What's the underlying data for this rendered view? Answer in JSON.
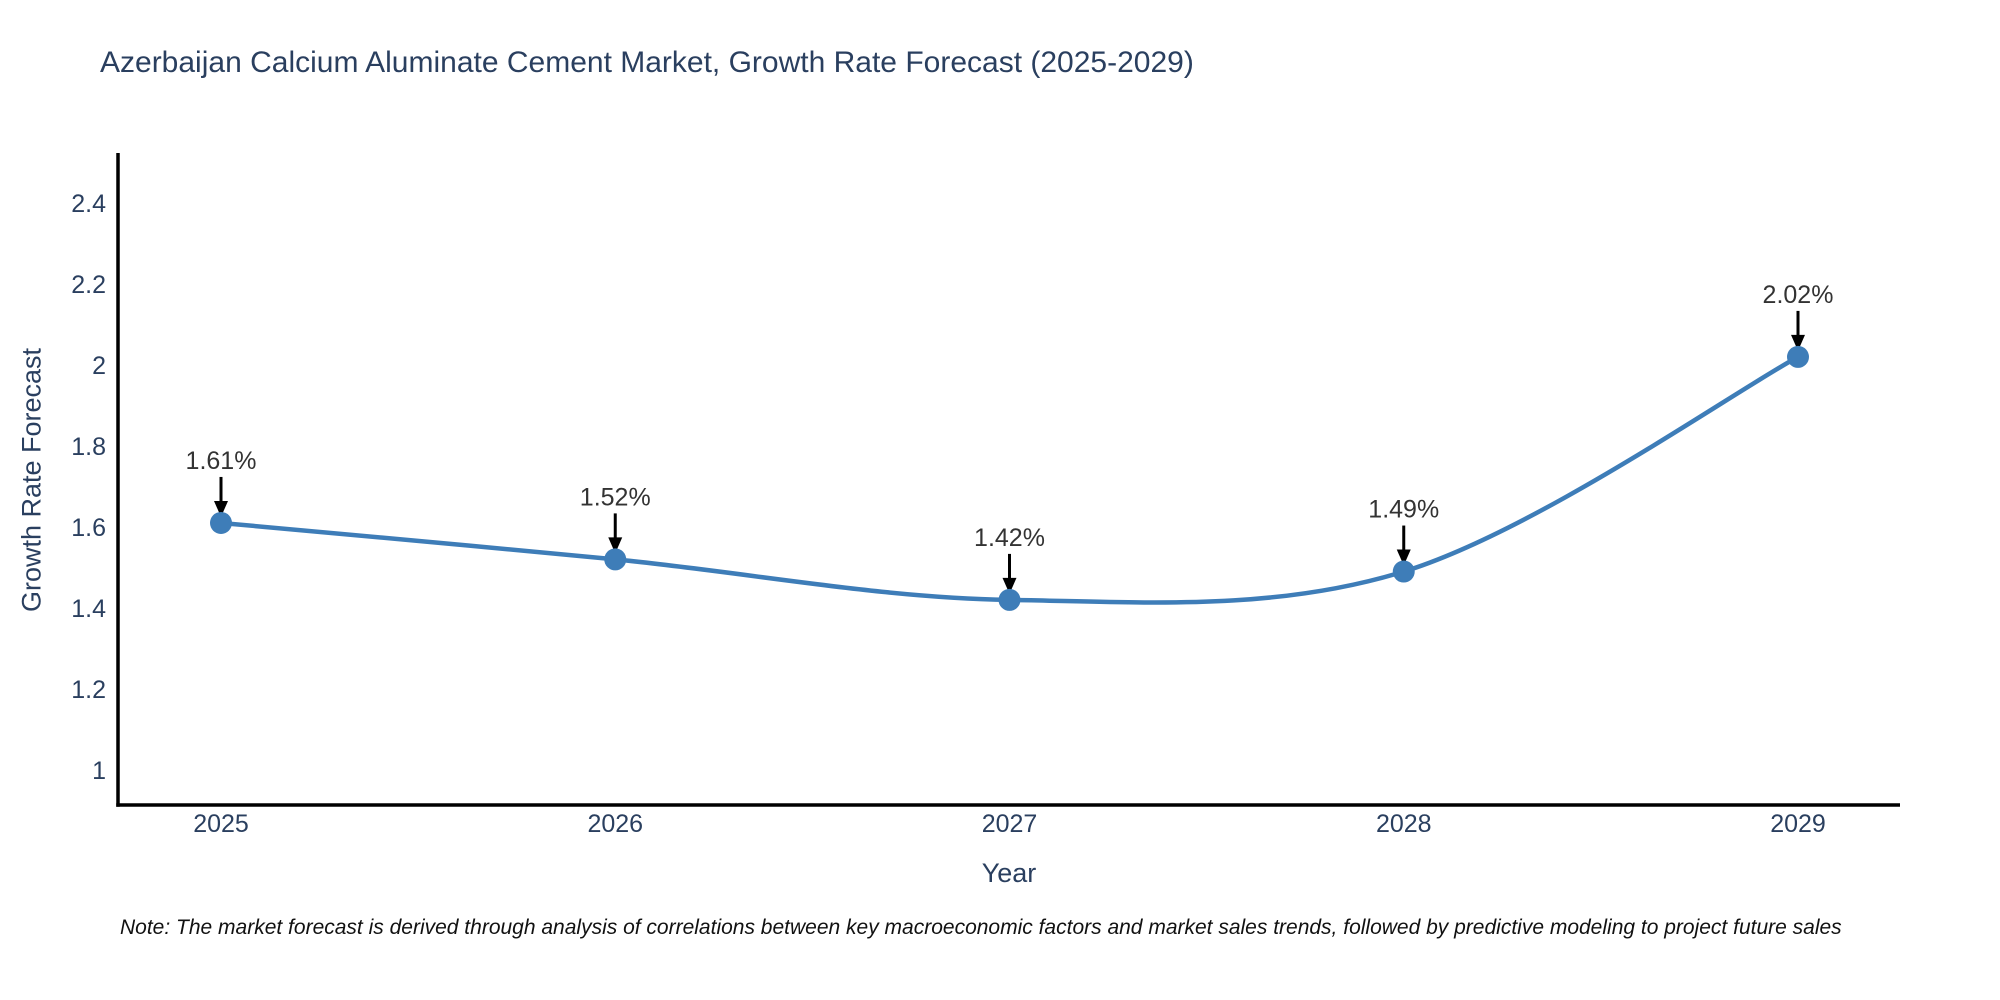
{
  "title": "Azerbaijan Calcium Aluminate Cement Market, Growth Rate Forecast (2025-2029)",
  "note": "Note: The market forecast is derived through analysis of correlations between key macroeconomic factors and market sales trends, followed by predictive modeling to project future sales",
  "chart_data": {
    "type": "line",
    "title": "Azerbaijan Calcium Aluminate Cement Market, Growth Rate Forecast (2025-2029)",
    "xlabel": "Year",
    "ylabel": "Growth Rate Forecast",
    "x": [
      2025,
      2026,
      2027,
      2028,
      2029
    ],
    "series": [
      {
        "name": "Growth Rate Forecast",
        "values": [
          1.61,
          1.52,
          1.42,
          1.49,
          2.02
        ],
        "point_labels": [
          "1.61%",
          "1.52%",
          "1.42%",
          "1.49%",
          "2.02%"
        ]
      }
    ],
    "yticks": [
      1,
      1.2,
      1.4,
      1.6,
      1.8,
      2,
      2.2,
      2.4
    ],
    "ylim": [
      0.91,
      2.52
    ],
    "line_shape": "spline",
    "grid": false,
    "legend": "none",
    "colors": {
      "line": "#3e7db8",
      "marker": "#3e7db8",
      "annotation_text": "#333333",
      "arrow": "#000000",
      "axis_line": "#000000",
      "axis_text": "#2a3f5f"
    }
  }
}
